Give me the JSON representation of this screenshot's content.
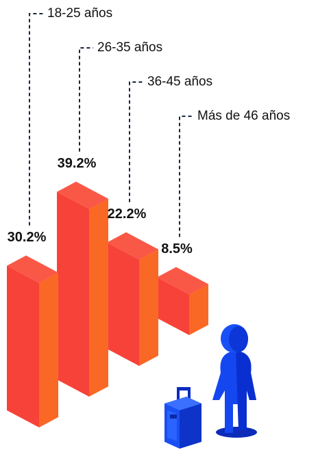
{
  "chart_data": {
    "type": "bar",
    "categories": [
      "18-25 años",
      "26-35 años",
      "36-45 años",
      "Más de 46 años"
    ],
    "values": [
      30.2,
      39.2,
      22.2,
      8.5
    ],
    "value_labels": [
      "30.2%",
      "39.2%",
      "22.2%",
      "8.5%"
    ],
    "color": "#f7423a"
  }
}
